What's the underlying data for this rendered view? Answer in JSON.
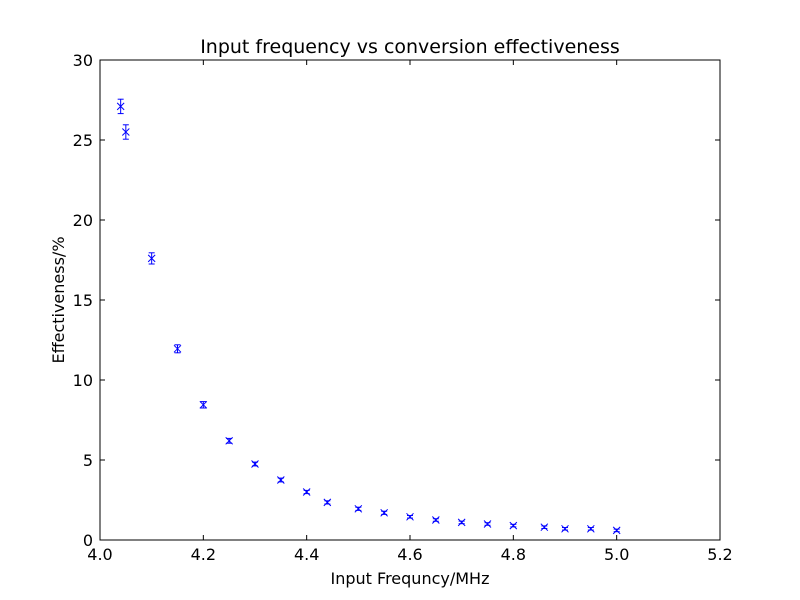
{
  "chart_data": {
    "type": "scatter",
    "title": "Input frequency vs conversion effectiveness",
    "xlabel": "Input Frequncy/MHz",
    "ylabel": "Effectiveness/%",
    "xlim": [
      4.0,
      5.2
    ],
    "ylim": [
      0,
      30
    ],
    "xticks": [
      "4.0",
      "4.2",
      "4.4",
      "4.6",
      "4.8",
      "5.0",
      "5.2"
    ],
    "yticks": [
      "0",
      "5",
      "10",
      "15",
      "20",
      "25",
      "30"
    ],
    "grid": false,
    "marker": "x",
    "color": "#0000ff",
    "series": [
      {
        "x": [
          4.04,
          4.05,
          4.1,
          4.15,
          4.2,
          4.25,
          4.3,
          4.35,
          4.4,
          4.44,
          4.5,
          4.55,
          4.6,
          4.65,
          4.7,
          4.75,
          4.8,
          4.86,
          4.9,
          4.95,
          5.0
        ],
        "y": [
          27.1,
          25.5,
          17.6,
          11.95,
          8.45,
          6.2,
          4.75,
          3.75,
          3.0,
          2.35,
          1.95,
          1.7,
          1.45,
          1.25,
          1.1,
          1.0,
          0.9,
          0.8,
          0.7,
          0.7,
          0.6
        ],
        "yerr": [
          0.45,
          0.45,
          0.35,
          0.25,
          0.2,
          0.15,
          0.12,
          0.12,
          0.1,
          0.1,
          0.1,
          0.1,
          0.08,
          0.08,
          0.08,
          0.08,
          0.08,
          0.08,
          0.08,
          0.08,
          0.08
        ]
      }
    ]
  }
}
